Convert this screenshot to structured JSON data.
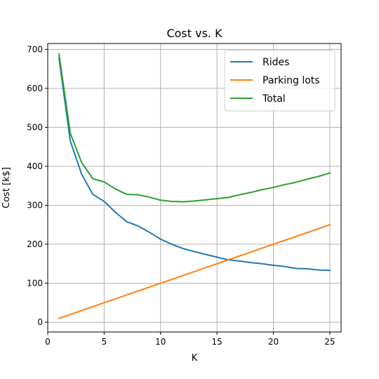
{
  "chart_data": {
    "type": "line",
    "title": "Cost vs. K",
    "xlabel": "K",
    "ylabel": "Cost [k$]",
    "xlim": [
      0,
      26
    ],
    "ylim": [
      -25,
      715
    ],
    "xticks": [
      0,
      5,
      10,
      15,
      20,
      25
    ],
    "yticks": [
      0,
      100,
      200,
      300,
      400,
      500,
      600,
      700
    ],
    "grid": true,
    "legend_position": "top-right",
    "x": [
      1,
      2,
      3,
      4,
      5,
      6,
      7,
      8,
      9,
      10,
      11,
      12,
      13,
      14,
      15,
      16,
      17,
      18,
      19,
      20,
      21,
      22,
      23,
      24,
      25
    ],
    "series": [
      {
        "name": "Rides",
        "color": "#1f77b4",
        "values": [
          678,
          465,
          380,
          328,
          310,
          282,
          258,
          247,
          231,
          213,
          200,
          189,
          181,
          174,
          167,
          160,
          157,
          153,
          150,
          146,
          143,
          138,
          137,
          134,
          133
        ]
      },
      {
        "name": "Parking lots",
        "color": "#ff7f0e",
        "values": [
          10,
          20,
          30,
          40,
          50,
          60,
          70,
          80,
          90,
          100,
          110,
          120,
          130,
          140,
          150,
          160,
          170,
          180,
          190,
          200,
          210,
          220,
          230,
          240,
          250
        ]
      },
      {
        "name": "Total",
        "color": "#2ca02c",
        "values": [
          688,
          485,
          410,
          368,
          360,
          342,
          328,
          327,
          321,
          313,
          310,
          309,
          311,
          314,
          317,
          320,
          327,
          333,
          340,
          346,
          353,
          359,
          367,
          374,
          383
        ]
      }
    ]
  }
}
